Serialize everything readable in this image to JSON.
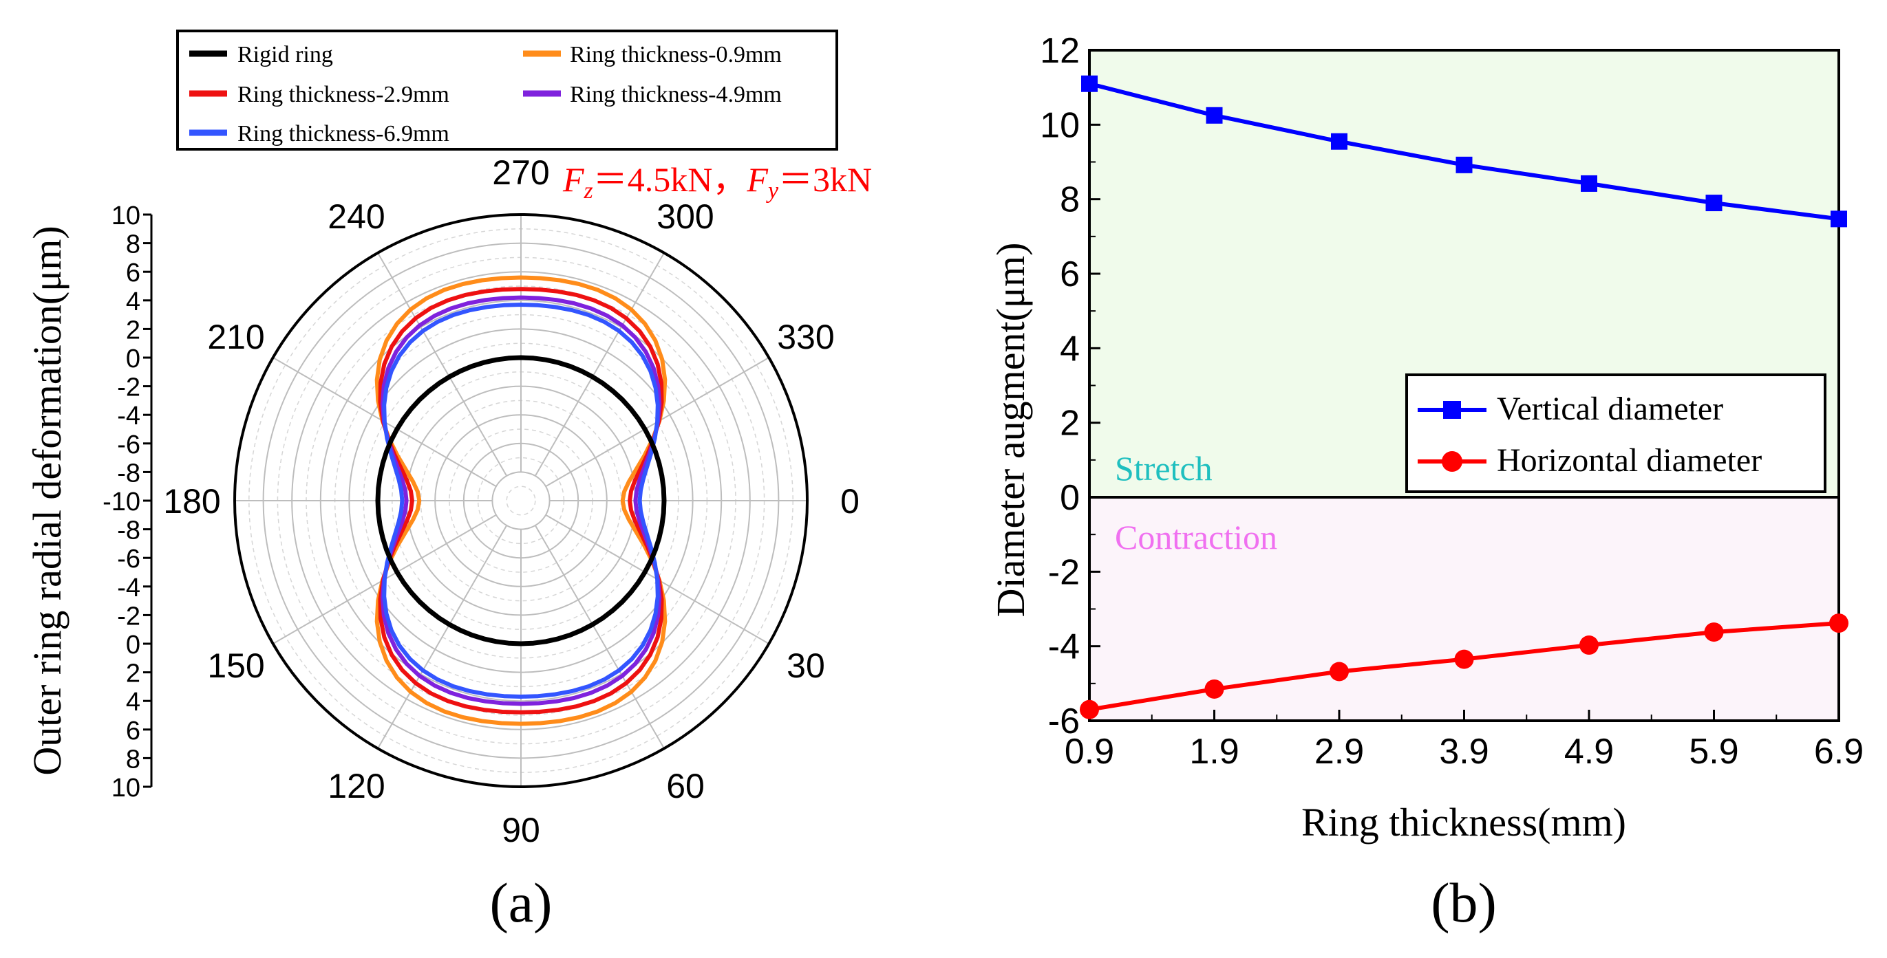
{
  "panel_a_label": "(a)",
  "panel_b_label": "(b)",
  "chart_data": [
    {
      "id": "a",
      "type": "polar-line",
      "title": "",
      "ylabel": "Outer ring radial deformation(μm)",
      "annotation": {
        "fz_symbol": "F",
        "fz_sub": "z",
        "fz_value": "＝4.5kN，",
        "fy_symbol": "F",
        "fy_sub": "y",
        "fy_value": "＝3kN",
        "color": "#ff0000"
      },
      "angle_ticks": [
        "0",
        "30",
        "60",
        "90",
        "120",
        "150",
        "180",
        "210",
        "240",
        "270",
        "300",
        "330"
      ],
      "radial_tick_labels": [
        "10",
        "8",
        "6",
        "4",
        "2",
        "0",
        "-2",
        "-4",
        "-6",
        "-8",
        "-10",
        "-8",
        "-6",
        "-4",
        "-2",
        "0",
        "2",
        "4",
        "6",
        "8",
        "10"
      ],
      "radial_range": [
        -10,
        10
      ],
      "legend": [
        "Rigid ring",
        "Ring thickness-2.9mm",
        "Ring thickness-6.9mm",
        "Ring thickness-0.9mm",
        "Ring thickness-4.9mm"
      ],
      "series": [
        {
          "name": "Rigid ring",
          "color": "#000000",
          "kind": "circle",
          "r": 0
        },
        {
          "name": "Ring thickness-0.9mm",
          "color": "#ff8c1a",
          "kind": "deform",
          "vertical": 5.6,
          "horizontal": -2.9,
          "lobe": 2.6
        },
        {
          "name": "Ring thickness-2.9mm",
          "color": "#ee1111",
          "kind": "deform",
          "vertical": 4.8,
          "horizontal": -2.4,
          "lobe": 2.3
        },
        {
          "name": "Ring thickness-4.9mm",
          "color": "#7f22dd",
          "kind": "deform",
          "vertical": 4.2,
          "horizontal": -2.0,
          "lobe": 2.0
        },
        {
          "name": "Ring thickness-6.9mm",
          "color": "#3355ff",
          "kind": "deform",
          "vertical": 3.7,
          "horizontal": -1.7,
          "lobe": 1.8
        }
      ]
    },
    {
      "id": "b",
      "type": "line",
      "xlabel": "Ring thickness(mm)",
      "ylabel": "Diameter augment(μm)",
      "categories": [
        "0.9",
        "1.9",
        "2.9",
        "3.9",
        "4.9",
        "5.9",
        "6.9"
      ],
      "x": [
        0.9,
        1.9,
        2.9,
        3.9,
        4.9,
        5.9,
        6.9
      ],
      "xlim": [
        0.9,
        6.9
      ],
      "ylim": [
        -6,
        12
      ],
      "yticks": [
        -6,
        -4,
        -2,
        0,
        2,
        4,
        6,
        8,
        10,
        12
      ],
      "regions": [
        {
          "label": "Stretch",
          "color": "#1fbfbf",
          "fill": "#f0fbeb"
        },
        {
          "label": "Contraction",
          "color": "#f070f0",
          "fill": "#fcf4fa"
        }
      ],
      "series": [
        {
          "name": "Vertical diameter",
          "color": "#0000ff",
          "marker": "square",
          "values": [
            11.1,
            10.25,
            9.55,
            8.92,
            8.42,
            7.9,
            7.47
          ]
        },
        {
          "name": "Horizontal diameter",
          "color": "#ff0000",
          "marker": "circle",
          "values": [
            -5.7,
            -5.15,
            -4.68,
            -4.35,
            -3.97,
            -3.62,
            -3.38
          ]
        }
      ]
    }
  ]
}
